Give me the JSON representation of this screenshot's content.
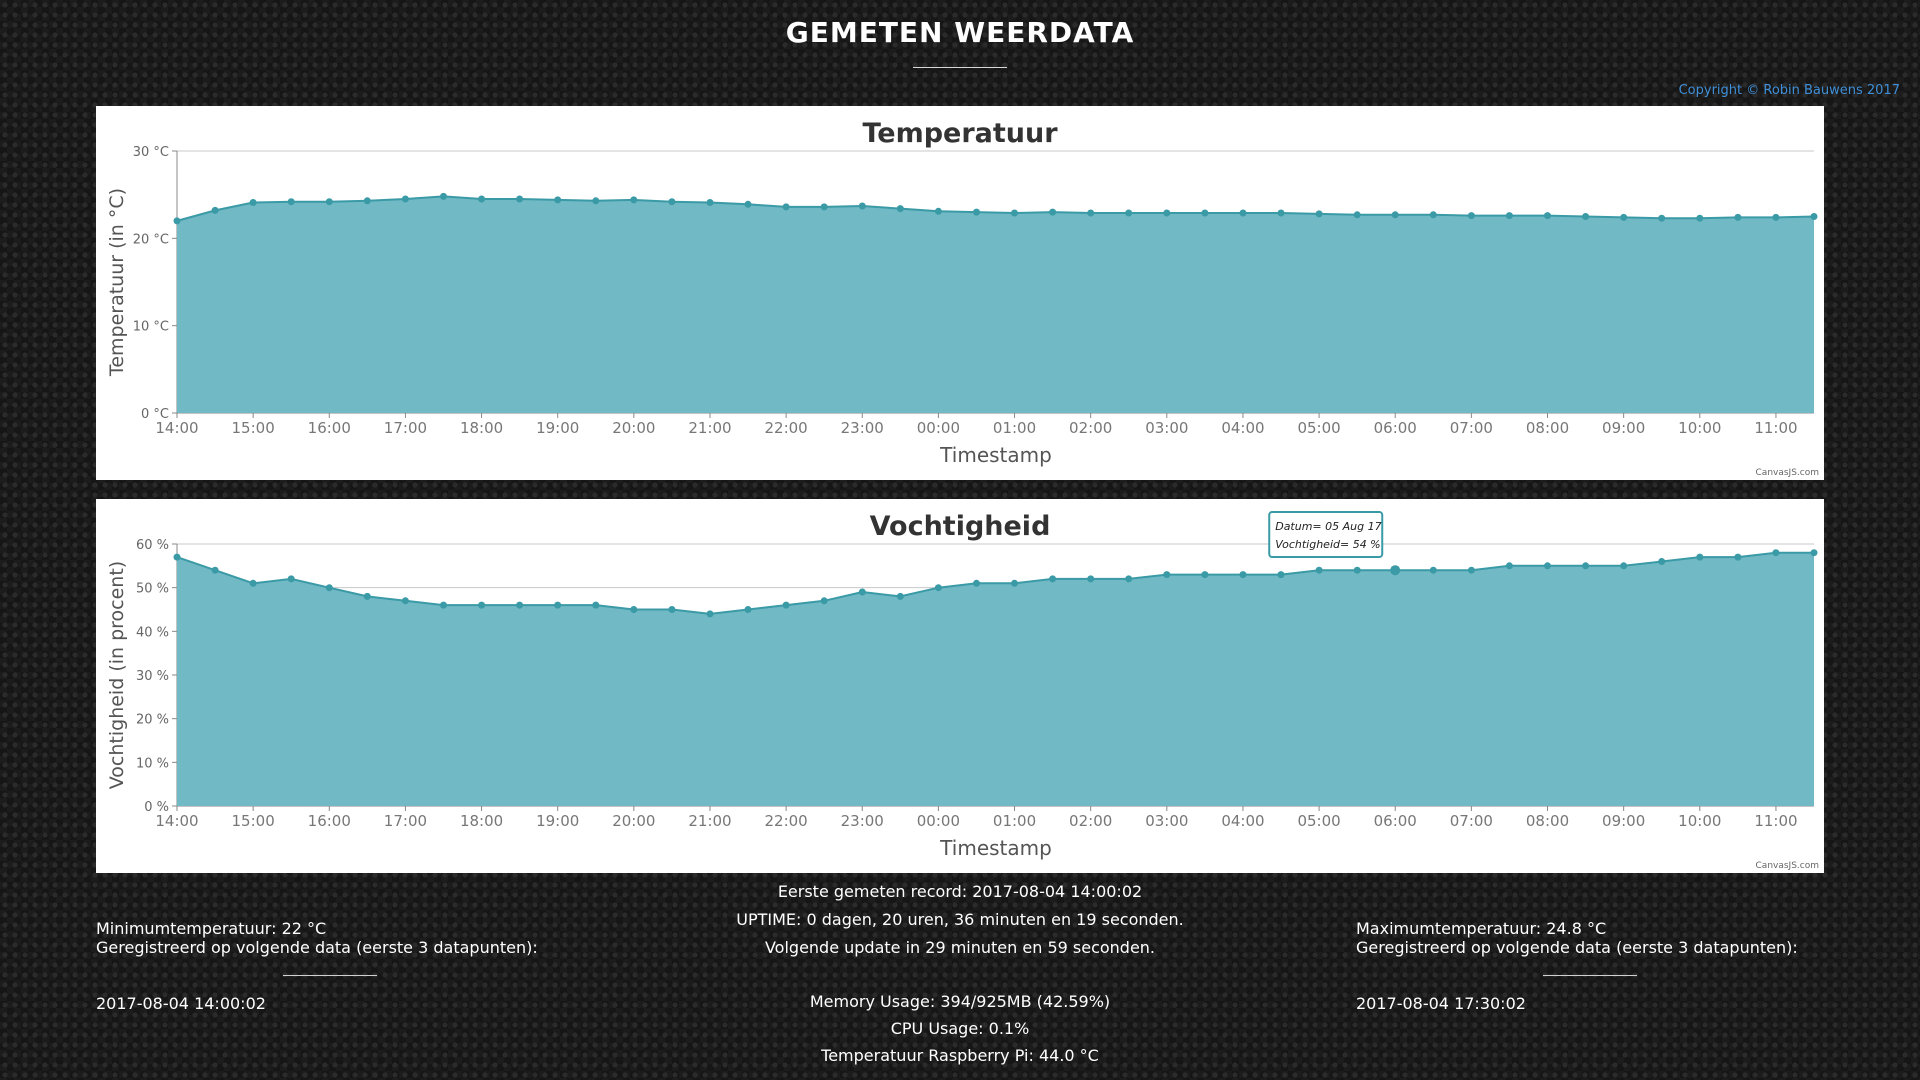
{
  "page": {
    "title": "GEMETEN WEERDATA",
    "copyright": "Copyright © Robin Bauwens 2017"
  },
  "chart_data": [
    {
      "type": "area",
      "title": "Temperatuur",
      "xlabel": "Timestamp",
      "ylabel": "Temperatuur (in °C)",
      "ylim": [
        0,
        30
      ],
      "y_ticks": [
        "0 °C",
        "10 °C",
        "20 °C",
        "30 °C"
      ],
      "x_tick_labels": [
        "14:00",
        "15:00",
        "16:00",
        "17:00",
        "18:00",
        "19:00",
        "20:00",
        "21:00",
        "22:00",
        "23:00",
        "00:00",
        "01:00",
        "02:00",
        "03:00",
        "04:00",
        "05:00",
        "06:00",
        "07:00",
        "08:00",
        "09:00",
        "10:00",
        "11:00"
      ],
      "x": [
        "2017-08-04 14:00",
        "2017-08-04 14:30",
        "2017-08-04 15:00",
        "2017-08-04 15:30",
        "2017-08-04 16:00",
        "2017-08-04 16:30",
        "2017-08-04 17:00",
        "2017-08-04 17:30",
        "2017-08-04 18:00",
        "2017-08-04 18:30",
        "2017-08-04 19:00",
        "2017-08-04 19:30",
        "2017-08-04 20:00",
        "2017-08-04 20:30",
        "2017-08-04 21:00",
        "2017-08-04 21:30",
        "2017-08-04 22:00",
        "2017-08-04 22:30",
        "2017-08-04 23:00",
        "2017-08-04 23:30",
        "2017-08-05 00:00",
        "2017-08-05 00:30",
        "2017-08-05 01:00",
        "2017-08-05 01:30",
        "2017-08-05 02:00",
        "2017-08-05 02:30",
        "2017-08-05 03:00",
        "2017-08-05 03:30",
        "2017-08-05 04:00",
        "2017-08-05 04:30",
        "2017-08-05 05:00",
        "2017-08-05 05:30",
        "2017-08-05 06:00",
        "2017-08-05 06:30",
        "2017-08-05 07:00",
        "2017-08-05 07:30",
        "2017-08-05 08:00",
        "2017-08-05 08:30",
        "2017-08-05 09:00",
        "2017-08-05 09:30",
        "2017-08-05 10:00",
        "2017-08-05 10:30",
        "2017-08-05 11:00",
        "2017-08-05 11:30"
      ],
      "values": [
        22.0,
        23.2,
        24.1,
        24.2,
        24.2,
        24.3,
        24.5,
        24.8,
        24.5,
        24.5,
        24.4,
        24.3,
        24.4,
        24.2,
        24.1,
        23.9,
        23.6,
        23.6,
        23.7,
        23.4,
        23.1,
        23.0,
        22.9,
        23.0,
        22.9,
        22.9,
        22.9,
        22.9,
        22.9,
        22.9,
        22.8,
        22.7,
        22.7,
        22.7,
        22.6,
        22.6,
        22.6,
        22.5,
        22.4,
        22.3,
        22.3,
        22.4,
        22.4,
        22.5
      ],
      "grid": true,
      "fill_color": "#71b9c5",
      "line_color": "#3a9aa6",
      "credit": "CanvasJS.com"
    },
    {
      "type": "area",
      "title": "Vochtigheid",
      "xlabel": "Timestamp",
      "ylabel": "Vochtigheid (in procent)",
      "ylim": [
        0,
        60
      ],
      "y_ticks": [
        "0 %",
        "10 %",
        "20 %",
        "30 %",
        "40 %",
        "50 %",
        "60 %"
      ],
      "x_tick_labels": [
        "14:00",
        "15:00",
        "16:00",
        "17:00",
        "18:00",
        "19:00",
        "20:00",
        "21:00",
        "22:00",
        "23:00",
        "00:00",
        "01:00",
        "02:00",
        "03:00",
        "04:00",
        "05:00",
        "06:00",
        "07:00",
        "08:00",
        "09:00",
        "10:00",
        "11:00"
      ],
      "x": [
        "2017-08-04 14:00",
        "2017-08-04 14:30",
        "2017-08-04 15:00",
        "2017-08-04 15:30",
        "2017-08-04 16:00",
        "2017-08-04 16:30",
        "2017-08-04 17:00",
        "2017-08-04 17:30",
        "2017-08-04 18:00",
        "2017-08-04 18:30",
        "2017-08-04 19:00",
        "2017-08-04 19:30",
        "2017-08-04 20:00",
        "2017-08-04 20:30",
        "2017-08-04 21:00",
        "2017-08-04 21:30",
        "2017-08-04 22:00",
        "2017-08-04 22:30",
        "2017-08-04 23:00",
        "2017-08-04 23:30",
        "2017-08-05 00:00",
        "2017-08-05 00:30",
        "2017-08-05 01:00",
        "2017-08-05 01:30",
        "2017-08-05 02:00",
        "2017-08-05 02:30",
        "2017-08-05 03:00",
        "2017-08-05 03:30",
        "2017-08-05 04:00",
        "2017-08-05 04:30",
        "2017-08-05 05:00",
        "2017-08-05 05:30",
        "2017-08-05 06:00",
        "2017-08-05 06:30",
        "2017-08-05 07:00",
        "2017-08-05 07:30",
        "2017-08-05 08:00",
        "2017-08-05 08:30",
        "2017-08-05 09:00",
        "2017-08-05 09:30",
        "2017-08-05 10:00",
        "2017-08-05 10:30",
        "2017-08-05 11:00",
        "2017-08-05 11:30"
      ],
      "values": [
        57,
        54,
        51,
        52,
        50,
        48,
        47,
        46,
        46,
        46,
        46,
        46,
        45,
        45,
        44,
        45,
        46,
        47,
        49,
        48,
        50,
        51,
        51,
        52,
        52,
        52,
        53,
        53,
        53,
        53,
        54,
        54,
        54,
        54,
        54,
        55,
        55,
        55,
        55,
        56,
        57,
        57,
        58,
        58
      ],
      "grid": true,
      "fill_color": "#71b9c5",
      "line_color": "#3a9aa6",
      "credit": "CanvasJS.com",
      "tooltip": {
        "index": 32,
        "line1": "Datum= 05 Aug 17",
        "line2": "Vochtigheid= 54 %"
      }
    }
  ],
  "stats": {
    "first_record": "Eerste gemeten record: 2017-08-04 14:00:02",
    "uptime": "UPTIME: 0 dagen, 20 uren, 36 minuten en 19 seconden.",
    "next_update": "Volgende update in 29 minuten en 59 seconden.",
    "memory": "Memory Usage: 394/925MB (42.59%)",
    "cpu": "CPU Usage: 0.1%",
    "pi_temp": "Temperatuur Raspberry Pi: 44.0 °C"
  },
  "min_temp": {
    "label": "Minimumtemperatuur: 22 °C",
    "registered": "Geregistreerd op volgende data (eerste 3 datapunten):",
    "timestamp": "2017-08-04 14:00:02"
  },
  "max_temp": {
    "label": "Maximumtemperatuur: 24.8 °C",
    "registered": "Geregistreerd op volgende data (eerste 3 datapunten):",
    "timestamp": "2017-08-04 17:30:02"
  }
}
